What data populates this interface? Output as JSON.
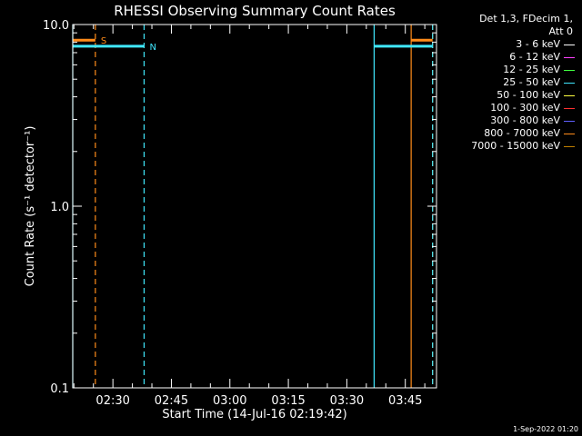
{
  "chart_data": {
    "type": "line",
    "title": "RHESSI Observing Summary Count Rates",
    "xlabel": "Start Time (14-Jul-16 02:19:42)",
    "ylabel": "Count Rate (s⁻¹ detector⁻¹)",
    "y_scale": "log",
    "ylim": [
      0.1,
      10.0
    ],
    "xlim": [
      "02:19:42",
      "03:53:00"
    ],
    "x_ticks": [
      "02:30",
      "02:45",
      "03:00",
      "03:15",
      "03:30",
      "03:45"
    ],
    "y_ticks": [
      "10.0",
      "1.0",
      "0.1"
    ],
    "grid": false,
    "legend_position": "right, outside plot",
    "series": [
      {
        "name": "3 - 6 keV",
        "color": "#ffffff",
        "values": []
      },
      {
        "name": "6 - 12 keV",
        "color": "#ff40ff",
        "values": []
      },
      {
        "name": "12 - 25 keV",
        "color": "#40ff40",
        "values": []
      },
      {
        "name": "25 - 50 keV",
        "color": "#40e8ff",
        "values": []
      },
      {
        "name": "50 - 100 keV",
        "color": "#ffff40",
        "values": []
      },
      {
        "name": "100 - 300 keV",
        "color": "#ff3030",
        "values": []
      },
      {
        "name": "300 - 800 keV",
        "color": "#6060ff",
        "values": []
      },
      {
        "name": "800 - 7000 keV",
        "color": "#ff8c1a",
        "values": []
      },
      {
        "name": "7000 - 15000 keV",
        "color": "#c08000",
        "values": []
      }
    ],
    "segments": [
      {
        "label": "S",
        "color": "#ff8c1a",
        "x": [
          "02:19:42",
          "02:25:30"
        ],
        "y": 8.2,
        "label_side": "right"
      },
      {
        "label": "N",
        "color": "#40e8ff",
        "x": [
          "02:19:42",
          "02:38:00"
        ],
        "y": 7.6,
        "label_side": "right"
      },
      {
        "label": "",
        "color": "#40e8ff",
        "x": [
          "03:37:00",
          "03:52:00"
        ],
        "y": 7.6
      },
      {
        "label": "",
        "color": "#ff8c1a",
        "x": [
          "03:46:30",
          "03:52:00"
        ],
        "y": 8.2
      }
    ],
    "vlines": [
      {
        "x": "02:19:42",
        "color": "#40e8ff",
        "style": "solid"
      },
      {
        "x": "02:25:30",
        "color": "#ff8c1a",
        "style": "dashed"
      },
      {
        "x": "02:38:00",
        "color": "#40e8ff",
        "style": "dashed"
      },
      {
        "x": "03:37:00",
        "color": "#40e8ff",
        "style": "solid"
      },
      {
        "x": "03:46:30",
        "color": "#ff8c1a",
        "style": "solid"
      },
      {
        "x": "03:52:00",
        "color": "#ff8c1a",
        "style": "dashed"
      },
      {
        "x": "03:52:00",
        "color": "#40e8ff",
        "style": "dashed"
      }
    ]
  },
  "legend": {
    "header_line1": "Det 1,3, FDecim 1,",
    "header_line2": "Att 0"
  },
  "footer": {
    "date": "1-Sep-2022 01:20"
  }
}
